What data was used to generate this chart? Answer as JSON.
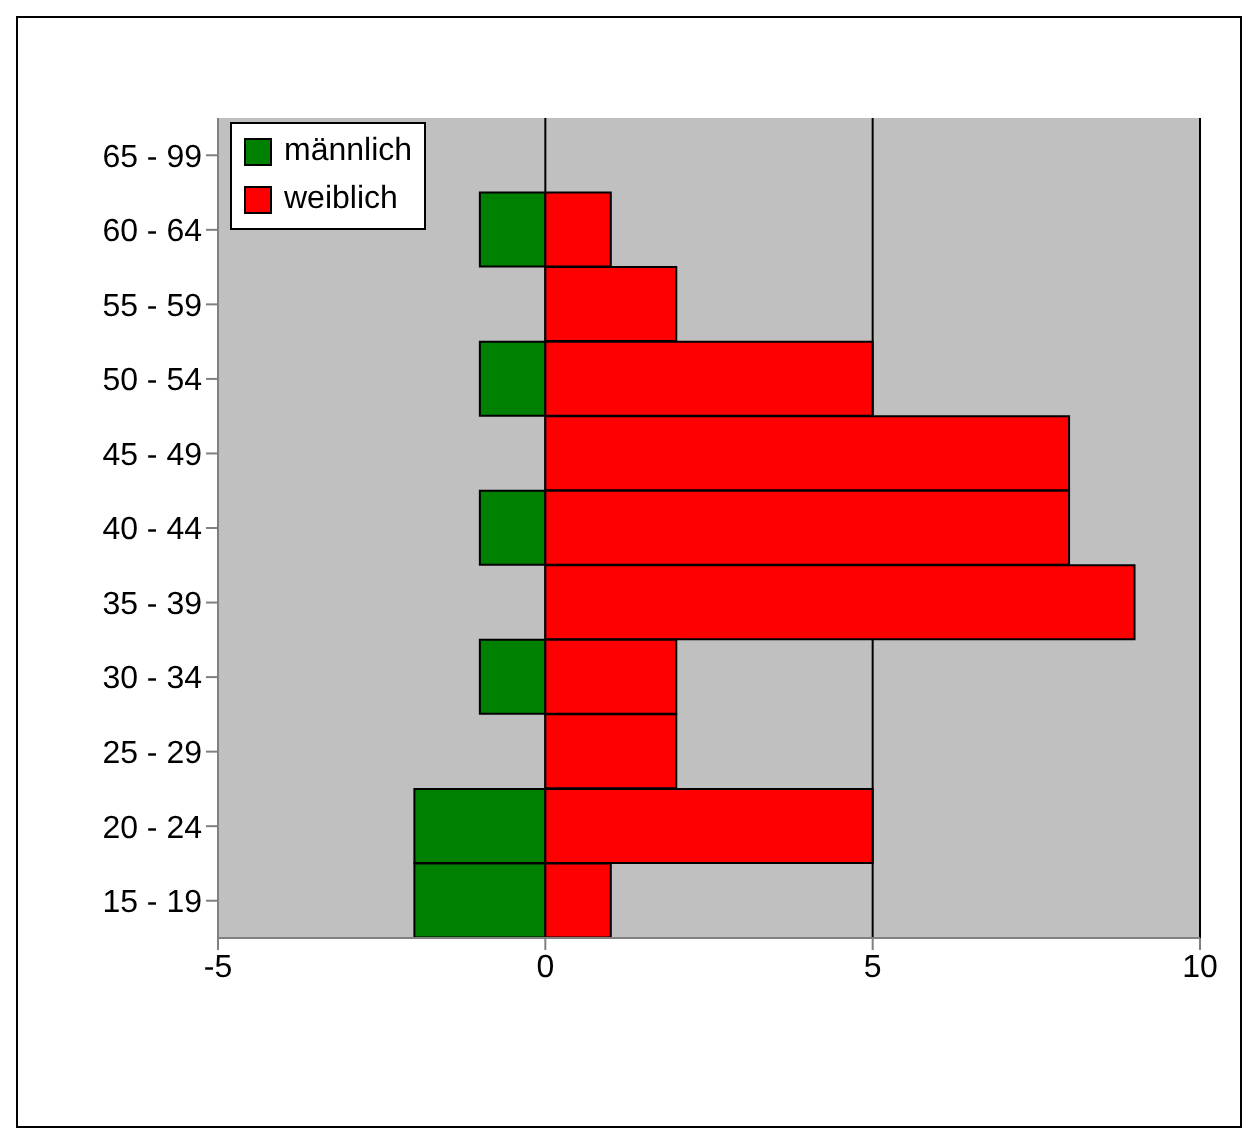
{
  "chart_data": {
    "type": "bar",
    "orientation": "horizontal",
    "stacked": true,
    "categories": [
      "65 - 99",
      "60 - 64",
      "55 - 59",
      "50 - 54",
      "45 - 49",
      "40 - 44",
      "35 - 39",
      "30 - 34",
      "25 - 29",
      "20 - 24",
      "15 - 19"
    ],
    "series": [
      {
        "name": "männlich",
        "color": "#008000",
        "values": [
          0,
          -1,
          0,
          -1,
          0,
          -1,
          0,
          -1,
          0,
          -2,
          -2
        ]
      },
      {
        "name": "weiblich",
        "color": "#ff0000",
        "values": [
          0,
          1,
          2,
          5,
          8,
          8,
          9,
          2,
          2,
          5,
          1
        ]
      }
    ],
    "xlim": [
      -5,
      10
    ],
    "xticks": [
      -5,
      0,
      5,
      10
    ],
    "grid": "x",
    "legend": "top left"
  }
}
